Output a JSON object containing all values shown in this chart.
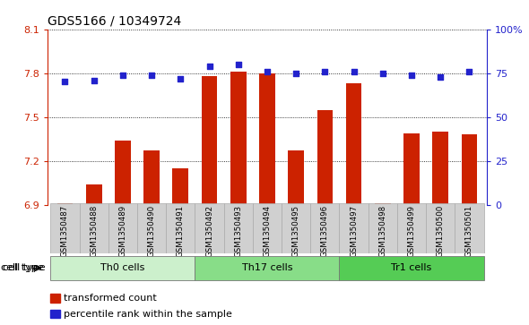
{
  "title": "GDS5166 / 10349724",
  "samples": [
    "GSM1350487",
    "GSM1350488",
    "GSM1350489",
    "GSM1350490",
    "GSM1350491",
    "GSM1350492",
    "GSM1350493",
    "GSM1350494",
    "GSM1350495",
    "GSM1350496",
    "GSM1350497",
    "GSM1350498",
    "GSM1350499",
    "GSM1350500",
    "GSM1350501"
  ],
  "bar_values": [
    6.91,
    7.04,
    7.34,
    7.27,
    7.15,
    7.78,
    7.81,
    7.8,
    7.27,
    7.55,
    7.73,
    6.91,
    7.39,
    7.4,
    7.38
  ],
  "percentile_values": [
    70,
    71,
    74,
    74,
    72,
    79,
    80,
    76,
    75,
    76,
    76,
    75,
    74,
    73,
    76
  ],
  "bar_color": "#cc2200",
  "dot_color": "#2222cc",
  "ylim_left": [
    6.9,
    8.1
  ],
  "ylim_right": [
    0,
    100
  ],
  "yticks_left": [
    6.9,
    7.2,
    7.5,
    7.8,
    8.1
  ],
  "yticks_right": [
    0,
    25,
    50,
    75,
    100
  ],
  "ytick_labels_right": [
    "0",
    "25",
    "50",
    "75",
    "100%"
  ],
  "cell_groups": [
    {
      "label": "Th0 cells",
      "start": 0,
      "end": 4,
      "color": "#ccf0cc"
    },
    {
      "label": "Th17 cells",
      "start": 5,
      "end": 9,
      "color": "#88dd88"
    },
    {
      "label": "Tr1 cells",
      "start": 10,
      "end": 14,
      "color": "#55cc55"
    }
  ],
  "cell_type_label": "cell type",
  "legend_items": [
    {
      "label": "transformed count",
      "color": "#cc2200"
    },
    {
      "label": "percentile rank within the sample",
      "color": "#2222cc"
    }
  ],
  "background_color": "#d0d0d0",
  "plot_bg_color": "#ffffff",
  "title_fontsize": 10,
  "tick_fontsize": 8,
  "label_fontsize": 8
}
